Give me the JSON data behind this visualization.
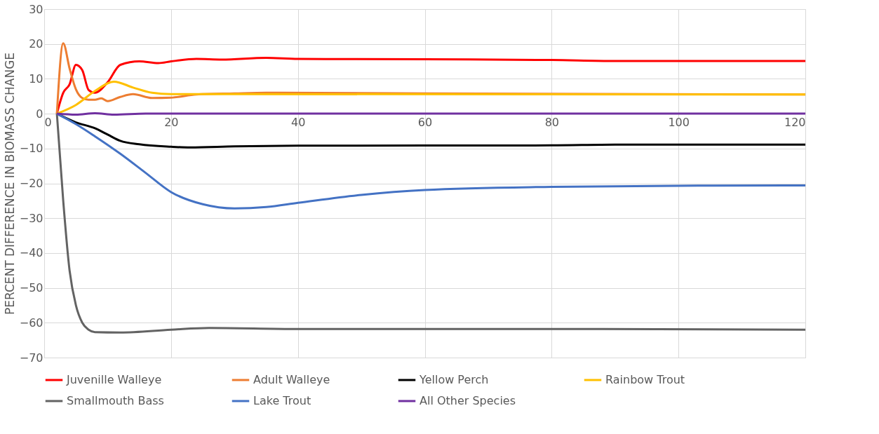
{
  "chart_data": {
    "type": "line",
    "ylabel": "PERCENT DIFFERENCE IN BIOMASS CHANGE",
    "xlim": [
      0,
      120
    ],
    "xticks": [
      0,
      20,
      40,
      60,
      80,
      100,
      120
    ],
    "ylim": [
      -70,
      30
    ],
    "yticks": [
      -70,
      -60,
      -50,
      -40,
      -30,
      -20,
      -10,
      0,
      10,
      20,
      30
    ],
    "grid": true,
    "legend": "bottom",
    "marker": "none",
    "line_style": "solid",
    "series": [
      {
        "name": "Juvenille Walleye",
        "color": "#ff0000",
        "x": [
          2,
          3,
          4,
          5,
          6,
          7,
          8,
          10,
          12,
          15,
          18,
          20,
          24,
          28,
          35,
          40,
          60,
          80,
          90,
          120
        ],
        "values": [
          0,
          6,
          8.4,
          14,
          12.5,
          6.8,
          6,
          9,
          14,
          15,
          14.5,
          15,
          15.7,
          15.5,
          16,
          15.7,
          15.6,
          15.4,
          15.1,
          15.1
        ]
      },
      {
        "name": "Adult Walleye",
        "color": "#ed7d31",
        "x": [
          2,
          3,
          4,
          5,
          6,
          7,
          8,
          9,
          10,
          12,
          14,
          17,
          20,
          24,
          30,
          35,
          60,
          120
        ],
        "values": [
          0,
          20.2,
          13,
          7,
          4.5,
          4,
          4,
          4.4,
          3.6,
          4.8,
          5.6,
          4.5,
          4.6,
          5.5,
          5.8,
          6,
          5.8,
          5.5
        ]
      },
      {
        "name": "Yellow Perch",
        "color": "#000000",
        "x": [
          2,
          5,
          8,
          10,
          12,
          15,
          20,
          23,
          30,
          40,
          80,
          90,
          120
        ],
        "values": [
          0,
          -2.5,
          -4.2,
          -6,
          -7.8,
          -8.8,
          -9.5,
          -9.7,
          -9.4,
          -9.2,
          -9.1,
          -8.9,
          -8.9
        ]
      },
      {
        "name": "Rainbow Trout",
        "color": "#ffc000",
        "x": [
          2,
          5,
          8,
          11,
          14,
          17,
          20,
          30,
          120
        ],
        "values": [
          0,
          2.5,
          6.5,
          9.2,
          7.5,
          6,
          5.6,
          5.6,
          5.5
        ]
      },
      {
        "name": "Smallmouth Bass",
        "color": "#636363",
        "x": [
          2,
          3,
          4,
          5,
          6,
          7,
          8,
          12,
          20,
          26,
          40,
          80,
          120
        ],
        "values": [
          0,
          -25,
          -45,
          -55,
          -60,
          -62,
          -62.7,
          -62.8,
          -62,
          -61.5,
          -61.8,
          -61.8,
          -62
        ]
      },
      {
        "name": "Lake Trout",
        "color": "#4472c4",
        "x": [
          2,
          5,
          8,
          12,
          16,
          20,
          25,
          30,
          35,
          40,
          50,
          60,
          80,
          100,
          120
        ],
        "values": [
          0,
          -3,
          -6.5,
          -11.5,
          -17,
          -22.5,
          -26,
          -27.2,
          -26.8,
          -25.6,
          -23.3,
          -21.9,
          -21,
          -20.7,
          -20.6
        ]
      },
      {
        "name": "All Other Species",
        "color": "#7030a0",
        "x": [
          2,
          5,
          8,
          11,
          16,
          30,
          60,
          120
        ],
        "values": [
          0,
          -0.3,
          0.1,
          -0.3,
          0,
          0,
          0,
          0
        ]
      }
    ]
  }
}
